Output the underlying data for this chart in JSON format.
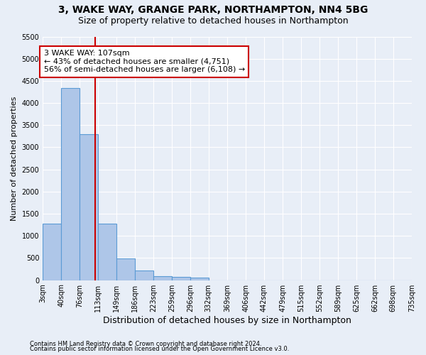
{
  "title": "3, WAKE WAY, GRANGE PARK, NORTHAMPTON, NN4 5BG",
  "subtitle": "Size of property relative to detached houses in Northampton",
  "xlabel": "Distribution of detached houses by size in Northampton",
  "ylabel": "Number of detached properties",
  "footer_line1": "Contains HM Land Registry data © Crown copyright and database right 2024.",
  "footer_line2": "Contains public sector information licensed under the Open Government Licence v3.0.",
  "bar_edges": [
    3,
    40,
    76,
    113,
    149,
    186,
    223,
    259,
    296,
    332,
    369,
    406,
    442,
    479,
    515,
    552,
    589,
    625,
    662,
    698,
    735
  ],
  "bar_heights": [
    1270,
    4330,
    3300,
    1280,
    490,
    220,
    90,
    70,
    55,
    0,
    0,
    0,
    0,
    0,
    0,
    0,
    0,
    0,
    0,
    0
  ],
  "bar_color": "#aec6e8",
  "bar_edge_color": "#5b9bd5",
  "vline_x": 107,
  "vline_color": "#cc0000",
  "annotation_text": "3 WAKE WAY: 107sqm\n← 43% of detached houses are smaller (4,751)\n56% of semi-detached houses are larger (6,108) →",
  "annotation_box_facecolor": "#ffffff",
  "annotation_box_edgecolor": "#cc0000",
  "xlim_min": 3,
  "xlim_max": 735,
  "ylim_min": 0,
  "ylim_max": 5500,
  "yticks": [
    0,
    500,
    1000,
    1500,
    2000,
    2500,
    3000,
    3500,
    4000,
    4500,
    5000,
    5500
  ],
  "background_color": "#e8eef7",
  "grid_color": "#ffffff",
  "title_fontsize": 10,
  "subtitle_fontsize": 9,
  "xlabel_fontsize": 9,
  "ylabel_fontsize": 8,
  "footer_fontsize": 6,
  "annotation_fontsize": 8,
  "tick_fontsize": 7,
  "tick_labels": [
    "3sqm",
    "40sqm",
    "76sqm",
    "113sqm",
    "149sqm",
    "186sqm",
    "223sqm",
    "259sqm",
    "296sqm",
    "332sqm",
    "369sqm",
    "406sqm",
    "442sqm",
    "479sqm",
    "515sqm",
    "552sqm",
    "589sqm",
    "625sqm",
    "662sqm",
    "698sqm",
    "735sqm"
  ]
}
